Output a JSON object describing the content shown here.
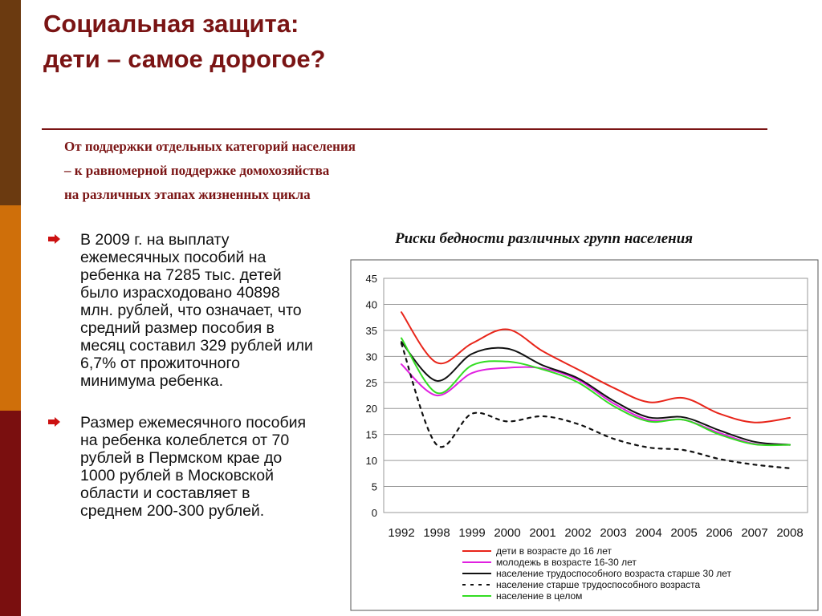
{
  "slide": {
    "title_line1": "Социальная защита:",
    "title_line2": "дети – самое дорогое?",
    "subtitle_line1": "От поддержки отдельных категорий населения",
    "subtitle_line2": "– к равномерной поддержке домохозяйства",
    "subtitle_line3": "на различных этапах жизненных цикла",
    "bullets": [
      "В 2009 г. на выплату ежемесячных пособий на ребенка на 7285 тыс. детей было израсходовано 40898 млн. рублей, что означает, что средний размер пособия в месяц составил 329 рублей или 6,7% от прожиточного минимума ребенка.",
      "Размер ежемесячного пособия на ребенка колеблется от 70 рублей в Пермском крае до 1000 рублей в Московской области и составляет в среднем 200-300 рублей."
    ],
    "colors": {
      "title": "#7a1414",
      "bar_top": "#6b3a10",
      "bar_mid": "#cf6f0a",
      "bar_bottom": "#7a0f0f",
      "bullet_arrow": "#cc1111"
    }
  },
  "chart_data": {
    "type": "line",
    "title": "Риски бедности различных групп населения",
    "categories": [
      "1992",
      "1998",
      "1999",
      "2000",
      "2001",
      "2002",
      "2003",
      "2004",
      "2005",
      "2006",
      "2007",
      "2008"
    ],
    "ylim": [
      0,
      45
    ],
    "yticks": [
      "0",
      "5",
      "10",
      "15",
      "20",
      "25",
      "30",
      "35",
      "40",
      "45"
    ],
    "grid": true,
    "legend_position": "bottom",
    "series": [
      {
        "name": "дети в возрасте до 16 лет",
        "color": "#e8251a",
        "dash": "solid",
        "values": [
          38.5,
          28.8,
          32.5,
          35.2,
          31.0,
          27.5,
          24.0,
          21.2,
          22.0,
          19.0,
          17.3,
          18.2
        ]
      },
      {
        "name": "молодежь в возрасте 16-30 лет",
        "color": "#e020e0",
        "dash": "solid",
        "values": [
          28.5,
          22.5,
          26.8,
          27.8,
          27.7,
          25.5,
          21.0,
          17.8,
          17.8,
          15.3,
          13.2,
          13.0
        ]
      },
      {
        "name": "население трудоспособного возраста старше 30 лет",
        "color": "#111111",
        "dash": "solid",
        "values": [
          32.8,
          25.3,
          30.5,
          31.5,
          28.3,
          25.8,
          21.5,
          18.3,
          18.3,
          15.8,
          13.6,
          13.0
        ]
      },
      {
        "name": "население старше трудоспособного возраста",
        "color": "#111111",
        "dash": "dashed",
        "values": [
          32.5,
          13.0,
          19.0,
          17.5,
          18.5,
          17.0,
          14.2,
          12.5,
          12.0,
          10.3,
          9.2,
          8.5
        ]
      },
      {
        "name": "население в целом",
        "color": "#33dd22",
        "dash": "solid",
        "values": [
          33.5,
          23.0,
          28.3,
          29.0,
          27.5,
          25.0,
          20.5,
          17.5,
          17.8,
          15.0,
          13.1,
          13.0
        ]
      }
    ]
  }
}
